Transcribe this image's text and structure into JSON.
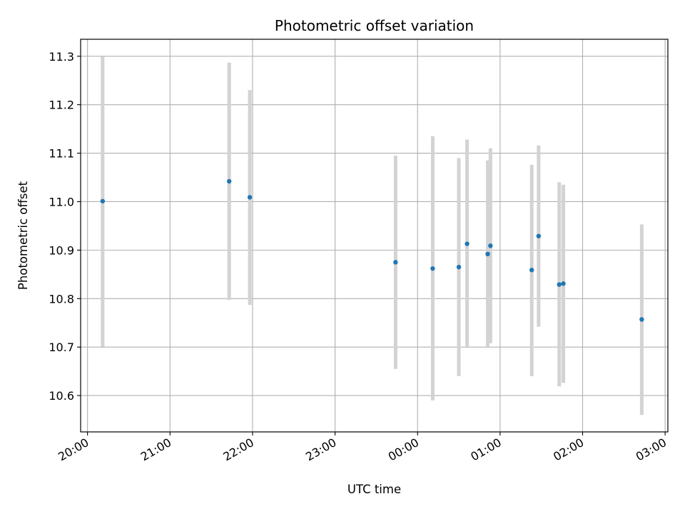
{
  "chart_data": {
    "type": "scatter",
    "title": "Photometric offset variation",
    "xlabel": "UTC time",
    "ylabel": "Photometric offset",
    "grid": true,
    "x_axis": {
      "kind": "time",
      "range": [
        "19:55",
        "03:02"
      ],
      "ticks": [
        "20:00",
        "21:00",
        "22:00",
        "23:00",
        "00:00",
        "01:00",
        "02:00",
        "03:00"
      ]
    },
    "y_axis": {
      "range": [
        10.525,
        11.335
      ],
      "ticks": [
        "10.6",
        "10.7",
        "10.8",
        "10.9",
        "11.0",
        "11.1",
        "11.2",
        "11.3"
      ]
    },
    "series": [
      {
        "marker_color": "#1f77b4",
        "errorbar_color": "#d3d3d3",
        "points": [
          {
            "time": "20:11",
            "y": 11.001,
            "ylow": 10.701,
            "yhigh": 11.299
          },
          {
            "time": "21:43",
            "y": 11.042,
            "ylow": 10.797,
            "yhigh": 11.287
          },
          {
            "time": "21:58",
            "y": 11.009,
            "ylow": 10.787,
            "yhigh": 11.23
          },
          {
            "time": "23:44",
            "y": 10.875,
            "ylow": 10.655,
            "yhigh": 11.095
          },
          {
            "time": "00:11",
            "y": 10.862,
            "ylow": 10.59,
            "yhigh": 11.135
          },
          {
            "time": "00:30",
            "y": 10.865,
            "ylow": 10.64,
            "yhigh": 11.09
          },
          {
            "time": "00:36",
            "y": 10.913,
            "ylow": 10.7,
            "yhigh": 11.128
          },
          {
            "time": "00:51",
            "y": 10.892,
            "ylow": 10.7,
            "yhigh": 11.085
          },
          {
            "time": "00:53",
            "y": 10.909,
            "ylow": 10.708,
            "yhigh": 11.11
          },
          {
            "time": "01:23",
            "y": 10.859,
            "ylow": 10.64,
            "yhigh": 11.076
          },
          {
            "time": "01:28",
            "y": 10.929,
            "ylow": 10.742,
            "yhigh": 11.116
          },
          {
            "time": "01:43",
            "y": 10.829,
            "ylow": 10.619,
            "yhigh": 11.04
          },
          {
            "time": "01:46",
            "y": 10.831,
            "ylow": 10.626,
            "yhigh": 11.035
          },
          {
            "time": "02:43",
            "y": 10.757,
            "ylow": 10.56,
            "yhigh": 10.953
          }
        ]
      }
    ]
  }
}
